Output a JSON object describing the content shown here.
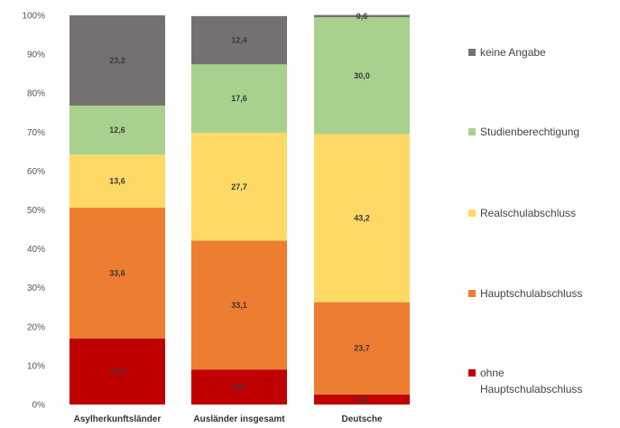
{
  "chart_data": {
    "type": "bar",
    "stacked": true,
    "percent": true,
    "categories": [
      "Asylherkunftsländer",
      "Ausländer insgesamt",
      "Deutsche"
    ],
    "series": [
      {
        "name": "ohne Hauptschulabschluss",
        "color": "#c00000",
        "values": [
          17.0,
          9.0,
          2.6
        ],
        "labels": [
          "17,0",
          "9,0",
          "2,6"
        ]
      },
      {
        "name": "Hauptschulabschluss",
        "color": "#ed7d31",
        "values": [
          33.6,
          33.1,
          23.7
        ],
        "labels": [
          "33,6",
          "33,1",
          "23,7"
        ]
      },
      {
        "name": "Realschulabschluss",
        "color": "#ffd966",
        "values": [
          13.6,
          27.7,
          43.2
        ],
        "labels": [
          "13,6",
          "27,7",
          "43,2"
        ]
      },
      {
        "name": "Studienberechtigung",
        "color": "#a9d18e",
        "values": [
          12.6,
          17.6,
          30.0
        ],
        "labels": [
          "12,6",
          "17,6",
          "30,0"
        ]
      },
      {
        "name": "keine Angabe",
        "color": "#767171",
        "values": [
          23.2,
          12.4,
          0.6
        ],
        "labels": [
          "23,2",
          "12,4",
          "0,6"
        ]
      }
    ],
    "ylim": [
      0,
      100
    ],
    "yticks": [
      "0%",
      "10%",
      "20%",
      "30%",
      "40%",
      "50%",
      "60%",
      "70%",
      "80%",
      "90%",
      "100%"
    ],
    "grid": false,
    "legend_position": "right",
    "legend_order": [
      "keine Angabe",
      "Studienberechtigung",
      "Realschulabschluss",
      "Hauptschulabschluss",
      "ohne Hauptschulabschluss"
    ],
    "legend_labels": [
      [
        "keine Angabe"
      ],
      [
        "Studienberechtigung"
      ],
      [
        "Realschulabschluss"
      ],
      [
        "Hauptschulabschluss"
      ],
      [
        "ohne",
        "Hauptschulabschluss"
      ]
    ]
  }
}
